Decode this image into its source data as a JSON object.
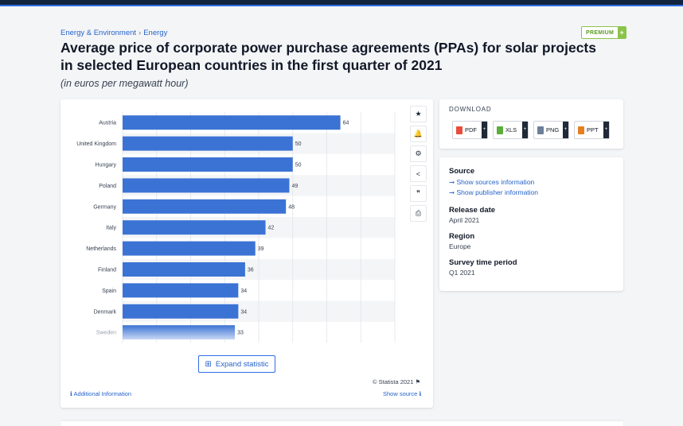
{
  "breadcrumb": {
    "level1": "Energy & Environment",
    "separator": "›",
    "level2": "Energy"
  },
  "premium": {
    "label": "PREMIUM",
    "plus": "+"
  },
  "title": "Average price of corporate power purchase agreements (PPAs) for solar projects in selected European countries in the first quarter of 2021",
  "subtitle": "(in euros per megawatt hour)",
  "chart_data": {
    "type": "bar",
    "orientation": "horizontal",
    "categories": [
      "Austria",
      "United Kingdom",
      "Hungary",
      "Poland",
      "Germany",
      "Italy",
      "Netherlands",
      "Finland",
      "Spain",
      "Denmark",
      "Sweden"
    ],
    "values": [
      64,
      50,
      50,
      49,
      48,
      42,
      39,
      36,
      34,
      34,
      33
    ],
    "unit": "euros per megawatt hour",
    "xlim": [
      0,
      80
    ],
    "grid": true,
    "bar_color": "#3b73d4"
  },
  "tools": [
    {
      "name": "favorite-icon",
      "glyph": "★"
    },
    {
      "name": "notification-icon",
      "glyph": "🔔"
    },
    {
      "name": "settings-icon",
      "glyph": "⚙"
    },
    {
      "name": "share-icon",
      "glyph": "<"
    },
    {
      "name": "quote-icon",
      "glyph": "❞"
    },
    {
      "name": "print-icon",
      "glyph": "⎙"
    }
  ],
  "expand": {
    "icon": "⊞",
    "label": "Expand statistic"
  },
  "copyright": {
    "text": "© Statista 2021",
    "flag": "⚑"
  },
  "additional_info": {
    "icon": "ℹ",
    "label": "Additional Information"
  },
  "show_source": {
    "label": "Show source",
    "icon": "ℹ"
  },
  "download": {
    "title": "DOWNLOAD",
    "formats": [
      {
        "label": "PDF",
        "color": "#e74c3c"
      },
      {
        "label": "XLS",
        "color": "#5cae3a"
      },
      {
        "label": "PNG",
        "color": "#6b7f99"
      },
      {
        "label": "PPT",
        "color": "#e67e22"
      }
    ],
    "plus": "+"
  },
  "info": {
    "source_label": "Source",
    "source_link1": "➞ Show sources information",
    "source_link2": "➞ Show publisher information",
    "release_label": "Release date",
    "release_value": "April 2021",
    "region_label": "Region",
    "region_value": "Europe",
    "period_label": "Survey time period",
    "period_value": "Q1 2021"
  }
}
